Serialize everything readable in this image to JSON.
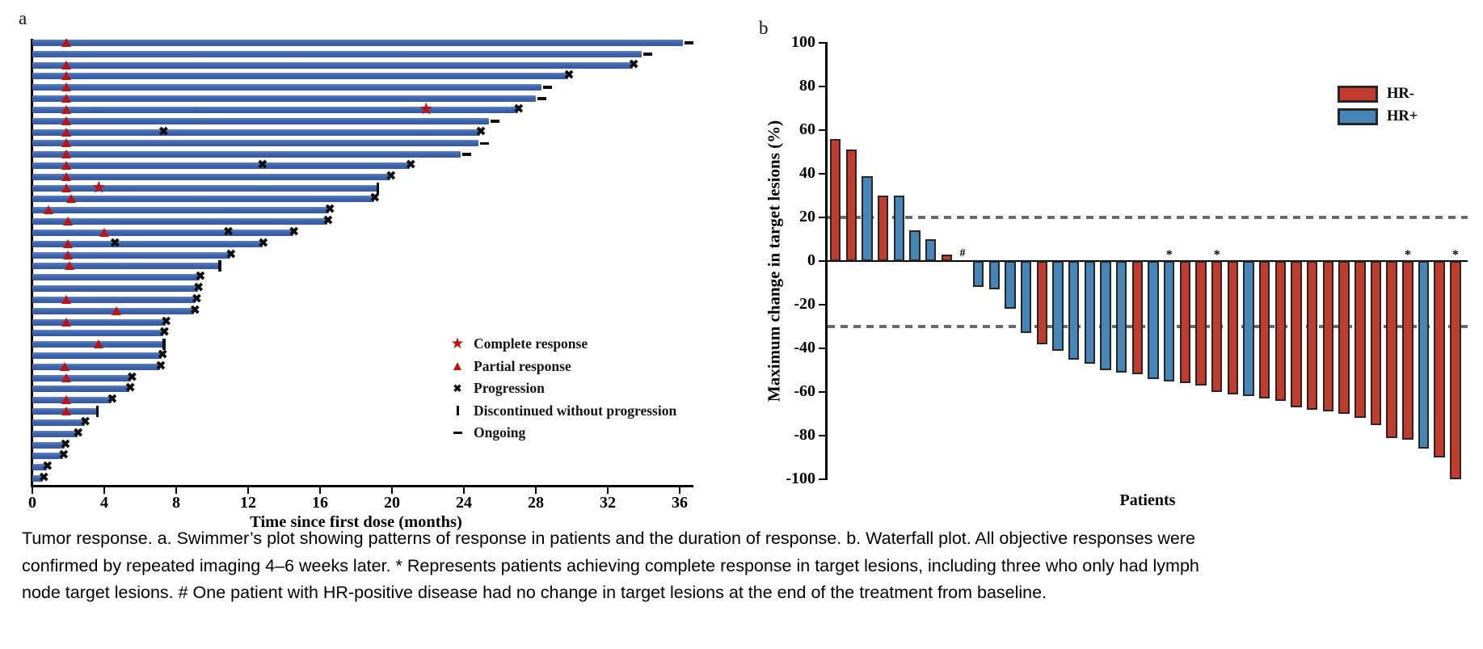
{
  "panels": {
    "a_label": "a",
    "b_label": "b"
  },
  "caption_lines": [
    "Tumor response. a. Swimmer’s plot showing patterns of response in patients and the duration of response. b. Waterfall plot. All objective responses were",
    "confirmed by repeated imaging 4–6 weeks later. * Represents patients achieving complete response in target lesions, including three who only had lymph",
    "node target lesions. # One patient with HR-positive disease had no change in target lesions at the end of the treatment from baseline."
  ],
  "colors": {
    "swimmer_bar_blue": "#3e66ad",
    "response_red": "#bf1312",
    "marker_black": "#0d0d0d",
    "hr_neg_red": "#c23b2c",
    "hr_pos_blue": "#4585b7",
    "bar_stroke": "#262626",
    "reference_dash_gray": "#6b6b6b"
  },
  "chart_data": [
    {
      "type": "swimmer",
      "panel": "a",
      "xlabel": "Time since first dose (months)",
      "x_ticks": [
        0,
        4,
        8,
        12,
        16,
        20,
        24,
        28,
        32,
        36
      ],
      "xlim": [
        0,
        37
      ],
      "grid": false,
      "legend_position": "center-right",
      "legend": [
        {
          "icon": "star-icon",
          "color": "#bf1312",
          "label": "Complete response"
        },
        {
          "icon": "triangle-icon",
          "color": "#bf1312",
          "label": "Partial response"
        },
        {
          "icon": "x-icon",
          "color": "#0d0d0d",
          "label": "Progression"
        },
        {
          "icon": "bar-icon",
          "color": "#0d0d0d",
          "label": "Discontinued without progression"
        },
        {
          "icon": "dash-icon",
          "color": "#0d0d0d",
          "label": "Ongoing"
        }
      ],
      "end_types": {
        "o": "ongoing",
        "p": "progression",
        "d": "discontinued-without-progression"
      },
      "patients": [
        {
          "months": 36.2,
          "end": "o",
          "pr": 1.9
        },
        {
          "months": 33.9,
          "end": "o"
        },
        {
          "months": 33.4,
          "end": "p",
          "pr": 1.9
        },
        {
          "months": 29.8,
          "end": "p",
          "pr": 1.9
        },
        {
          "months": 28.3,
          "end": "o",
          "pr": 1.9
        },
        {
          "months": 28.0,
          "end": "o",
          "pr": 1.9
        },
        {
          "months": 27.0,
          "end": "p",
          "pr": 1.9,
          "cr": 21.9
        },
        {
          "months": 25.4,
          "end": "o",
          "pr": 1.9
        },
        {
          "months": 24.9,
          "end": "p",
          "pr": 1.9,
          "mx": [
            7.3
          ]
        },
        {
          "months": 24.8,
          "end": "o",
          "pr": 1.9
        },
        {
          "months": 23.8,
          "end": "o",
          "pr": 1.9
        },
        {
          "months": 21.0,
          "end": "p",
          "pr": 1.9,
          "mx": [
            12.8
          ]
        },
        {
          "months": 19.9,
          "end": "p",
          "pr": 1.9
        },
        {
          "months": 19.2,
          "end": "d",
          "pr": 1.9,
          "cr": 3.7
        },
        {
          "months": 19.0,
          "end": "p",
          "pr": 2.2
        },
        {
          "months": 16.5,
          "end": "p",
          "pr": 0.9
        },
        {
          "months": 16.4,
          "end": "p",
          "pr": 2.0
        },
        {
          "months": 14.5,
          "end": "p",
          "pr": 4.0,
          "mx": [
            10.9
          ]
        },
        {
          "months": 12.8,
          "end": "p",
          "pr": 2.0,
          "mx": [
            4.6
          ]
        },
        {
          "months": 11.0,
          "end": "p",
          "pr": 2.0
        },
        {
          "months": 10.4,
          "end": "d",
          "pr": 2.1
        },
        {
          "months": 9.3,
          "end": "p"
        },
        {
          "months": 9.2,
          "end": "p"
        },
        {
          "months": 9.1,
          "end": "p",
          "pr": 1.9
        },
        {
          "months": 9.0,
          "end": "p",
          "pr": 4.7
        },
        {
          "months": 7.4,
          "end": "p",
          "pr": 1.9
        },
        {
          "months": 7.3,
          "end": "p"
        },
        {
          "months": 7.3,
          "end": "d",
          "pr": 3.7
        },
        {
          "months": 7.2,
          "end": "p"
        },
        {
          "months": 7.1,
          "end": "p",
          "pr": 1.8
        },
        {
          "months": 5.5,
          "end": "p",
          "pr": 1.9
        },
        {
          "months": 5.4,
          "end": "p"
        },
        {
          "months": 4.4,
          "end": "p",
          "pr": 1.9
        },
        {
          "months": 3.6,
          "end": "d",
          "pr": 1.9
        },
        {
          "months": 2.9,
          "end": "p"
        },
        {
          "months": 2.5,
          "end": "p"
        },
        {
          "months": 1.8,
          "end": "p"
        },
        {
          "months": 1.7,
          "end": "p"
        },
        {
          "months": 0.8,
          "end": "p"
        },
        {
          "months": 0.6,
          "end": "p"
        }
      ]
    },
    {
      "type": "bar",
      "subtype": "waterfall",
      "panel": "b",
      "ylabel": "Maximum change in target lesions (%)",
      "xlabel": "Patients",
      "ylim": [
        -100,
        100
      ],
      "y_ticks": [
        100,
        80,
        60,
        40,
        20,
        0,
        -20,
        -40,
        -60,
        -80,
        -100
      ],
      "reference_lines": [
        20,
        -30
      ],
      "legend_position": "top-right",
      "legend": [
        {
          "label": "HR-",
          "color": "#c23b2c"
        },
        {
          "label": "HR+",
          "color": "#4585b7"
        }
      ],
      "bars": [
        {
          "v": 56,
          "g": "HR-"
        },
        {
          "v": 51,
          "g": "HR-"
        },
        {
          "v": 39,
          "g": "HR+"
        },
        {
          "v": 30,
          "g": "HR-"
        },
        {
          "v": 30,
          "g": "HR+"
        },
        {
          "v": 14,
          "g": "HR+"
        },
        {
          "v": 10,
          "g": "HR+"
        },
        {
          "v": 3,
          "g": "HR-"
        },
        {
          "v": 0,
          "g": "HR+",
          "mark": "#"
        },
        {
          "v": -12,
          "g": "HR+"
        },
        {
          "v": -13,
          "g": "HR+"
        },
        {
          "v": -22,
          "g": "HR+"
        },
        {
          "v": -33,
          "g": "HR+"
        },
        {
          "v": -38,
          "g": "HR-"
        },
        {
          "v": -41,
          "g": "HR+"
        },
        {
          "v": -45,
          "g": "HR+"
        },
        {
          "v": -47,
          "g": "HR+"
        },
        {
          "v": -50,
          "g": "HR+"
        },
        {
          "v": -51,
          "g": "HR+"
        },
        {
          "v": -52,
          "g": "HR-"
        },
        {
          "v": -54,
          "g": "HR+"
        },
        {
          "v": -55,
          "g": "HR+",
          "mark": "*"
        },
        {
          "v": -56,
          "g": "HR-"
        },
        {
          "v": -57,
          "g": "HR-"
        },
        {
          "v": -60,
          "g": "HR-",
          "mark": "*"
        },
        {
          "v": -61,
          "g": "HR-"
        },
        {
          "v": -62,
          "g": "HR+"
        },
        {
          "v": -63,
          "g": "HR-"
        },
        {
          "v": -64,
          "g": "HR-"
        },
        {
          "v": -67,
          "g": "HR-"
        },
        {
          "v": -68,
          "g": "HR-"
        },
        {
          "v": -69,
          "g": "HR-"
        },
        {
          "v": -70,
          "g": "HR-"
        },
        {
          "v": -72,
          "g": "HR-"
        },
        {
          "v": -75,
          "g": "HR-"
        },
        {
          "v": -81,
          "g": "HR-"
        },
        {
          "v": -82,
          "g": "HR-",
          "mark": "*"
        },
        {
          "v": -86,
          "g": "HR+"
        },
        {
          "v": -90,
          "g": "HR-"
        },
        {
          "v": -100,
          "g": "HR-",
          "mark": "*"
        }
      ]
    }
  ]
}
